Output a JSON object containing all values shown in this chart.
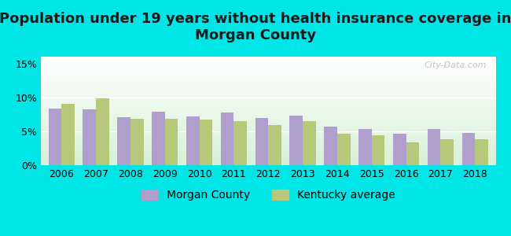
{
  "title": "Population under 19 years without health insurance coverage in\nMorgan County",
  "years": [
    2006,
    2007,
    2008,
    2009,
    2010,
    2011,
    2012,
    2013,
    2014,
    2015,
    2016,
    2017,
    2018
  ],
  "morgan_county": [
    8.3,
    8.2,
    7.1,
    7.9,
    7.2,
    7.8,
    7.0,
    7.3,
    5.7,
    5.3,
    4.6,
    5.3,
    4.7
  ],
  "kentucky_avg": [
    9.0,
    9.9,
    6.8,
    6.8,
    6.7,
    6.5,
    5.9,
    6.5,
    4.6,
    4.4,
    3.4,
    3.8,
    3.8
  ],
  "morgan_color": "#b09fcc",
  "kentucky_color": "#b8c87a",
  "bg_outer": "#00e5e5",
  "bg_plot_top": "#ffffff",
  "bg_plot_bottom": "#d8f0d8",
  "ylim": [
    0,
    16
  ],
  "yticks": [
    0,
    5,
    10,
    15
  ],
  "ytick_labels": [
    "0%",
    "5%",
    "10%",
    "15%"
  ],
  "bar_width": 0.38,
  "title_fontsize": 13,
  "legend_fontsize": 10,
  "tick_fontsize": 9,
  "watermark": "City-Data.com"
}
